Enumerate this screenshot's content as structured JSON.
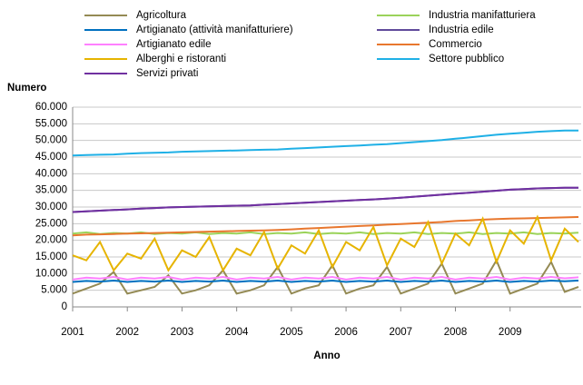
{
  "chart_data": {
    "type": "line",
    "y_label": "Numero",
    "x_label": "Anno",
    "x": [
      2001,
      2001.25,
      2001.5,
      2001.75,
      2002,
      2002.25,
      2002.5,
      2002.75,
      2003,
      2003.25,
      2003.5,
      2003.75,
      2004,
      2004.25,
      2004.5,
      2004.75,
      2005,
      2005.25,
      2005.5,
      2005.75,
      2006,
      2006.25,
      2006.5,
      2006.75,
      2007,
      2007.25,
      2007.5,
      2007.75,
      2008,
      2008.25,
      2008.5,
      2008.75,
      2009,
      2009.25,
      2009.5,
      2009.75,
      2010,
      2010.25
    ],
    "xlim": [
      2001,
      2010.3
    ],
    "xticks": [
      2001,
      2002,
      2003,
      2004,
      2005,
      2006,
      2007,
      2008,
      2009
    ],
    "ylim": [
      0,
      60000
    ],
    "yticks": [
      0,
      {
        "value": 5000,
        "label": "5.000"
      },
      {
        "value": 10000,
        "label": "10.000"
      },
      {
        "value": 15000,
        "label": "15.000"
      },
      {
        "value": 20000,
        "label": "20.000"
      },
      {
        "value": 25000,
        "label": "25.000"
      },
      {
        "value": 30000,
        "label": "30.000"
      },
      {
        "value": 35000,
        "label": "35.000"
      },
      {
        "value": 40000,
        "label": "40.000"
      },
      {
        "value": 45000,
        "label": "45.000"
      },
      {
        "value": 50000,
        "label": "50.000"
      },
      {
        "value": 55000,
        "label": "55.000"
      },
      {
        "value": 60000,
        "label": "60.000"
      }
    ],
    "grid": true,
    "series": [
      {
        "name": "Agricoltura",
        "color": "#948a54",
        "values": [
          4000,
          5500,
          7000,
          10500,
          4000,
          5000,
          6000,
          9500,
          4000,
          5000,
          6500,
          11000,
          4000,
          5000,
          6500,
          12000,
          4000,
          5500,
          6500,
          12500,
          4000,
          5500,
          6500,
          12000,
          4000,
          5500,
          7000,
          13000,
          4000,
          5500,
          7000,
          14000,
          4000,
          5500,
          7000,
          13500,
          4500,
          6000
        ]
      },
      {
        "name": "Industria manifatturiera",
        "color": "#9bd35a",
        "values": [
          22000,
          22400,
          21900,
          22200,
          22000,
          22400,
          21900,
          22200,
          22000,
          22400,
          21900,
          22200,
          22000,
          22400,
          21900,
          22200,
          22000,
          22400,
          21900,
          22200,
          22000,
          22400,
          21900,
          22200,
          22000,
          22400,
          21900,
          22200,
          22000,
          22400,
          21900,
          22200,
          22000,
          22400,
          21900,
          22200,
          22000,
          22300
        ]
      },
      {
        "name": "Artigianato (attività manifatturiere)",
        "color": "#0070c0",
        "values": [
          7500,
          7800,
          7600,
          7900,
          7500,
          7800,
          7600,
          7900,
          7500,
          7800,
          7600,
          7900,
          7500,
          7800,
          7600,
          7900,
          7500,
          7800,
          7600,
          7900,
          7500,
          7800,
          7600,
          7900,
          7500,
          7800,
          7600,
          7900,
          7500,
          7800,
          7600,
          7900,
          7500,
          7800,
          7600,
          7900,
          7700,
          7900
        ]
      },
      {
        "name": "Industria edile",
        "color": "#604a9b",
        "values": [
          28500,
          28700,
          28900,
          29100,
          29300,
          29500,
          29700,
          29900,
          30000,
          30100,
          30200,
          30300,
          30400,
          30500,
          30700,
          30900,
          31100,
          31300,
          31500,
          31700,
          31900,
          32100,
          32300,
          32500,
          32800,
          33100,
          33400,
          33700,
          34000,
          34300,
          34600,
          34900,
          35200,
          35400,
          35600,
          35700,
          35800,
          35800
        ]
      },
      {
        "name": "Artigianato edile",
        "color": "#ff80ff",
        "values": [
          8200,
          8800,
          8500,
          9000,
          8200,
          8800,
          8500,
          9000,
          8200,
          8800,
          8500,
          9000,
          8200,
          8800,
          8500,
          9000,
          8200,
          8800,
          8500,
          9000,
          8200,
          8800,
          8500,
          9000,
          8200,
          8800,
          8500,
          9000,
          8200,
          8800,
          8500,
          9000,
          8200,
          8800,
          8500,
          9000,
          8600,
          8900
        ]
      },
      {
        "name": "Commercio",
        "color": "#e8772e",
        "values": [
          21500,
          21700,
          21800,
          21900,
          22000,
          22100,
          22200,
          22300,
          22400,
          22500,
          22600,
          22700,
          22800,
          22900,
          23000,
          23100,
          23300,
          23500,
          23700,
          23900,
          24100,
          24300,
          24500,
          24700,
          24900,
          25100,
          25300,
          25500,
          25800,
          26000,
          26200,
          26400,
          26500,
          26600,
          26700,
          26800,
          26900,
          27000
        ]
      },
      {
        "name": "Alberghi e ristoranti",
        "color": "#e6b400",
        "values": [
          15500,
          14000,
          19500,
          11000,
          16000,
          14500,
          20500,
          11000,
          17000,
          15000,
          21000,
          11000,
          17500,
          15500,
          22500,
          11500,
          18500,
          16000,
          23000,
          12000,
          19500,
          17000,
          24000,
          12500,
          20500,
          18000,
          25500,
          13000,
          22000,
          18500,
          26500,
          13500,
          23000,
          19000,
          27000,
          14000,
          23500,
          19500
        ]
      },
      {
        "name": "Settore pubblico",
        "color": "#1fb0e6",
        "values": [
          45500,
          45600,
          45700,
          45800,
          46000,
          46200,
          46300,
          46400,
          46600,
          46700,
          46800,
          46900,
          47000,
          47100,
          47200,
          47300,
          47500,
          47700,
          47900,
          48100,
          48300,
          48500,
          48700,
          48900,
          49200,
          49500,
          49800,
          50100,
          50500,
          50900,
          51300,
          51700,
          52000,
          52300,
          52600,
          52800,
          53000,
          53000
        ]
      },
      {
        "name": "Servizi privati",
        "color": "#7030a0",
        "values": [
          28500,
          28700,
          28900,
          29100,
          29300,
          29500,
          29700,
          29900,
          30000,
          30100,
          30200,
          30300,
          30400,
          30500,
          30700,
          30900,
          31100,
          31300,
          31500,
          31700,
          31900,
          32100,
          32300,
          32500,
          32800,
          33100,
          33400,
          33700,
          34000,
          34300,
          34600,
          34900,
          35200,
          35400,
          35600,
          35700,
          35800,
          35800
        ]
      }
    ]
  }
}
